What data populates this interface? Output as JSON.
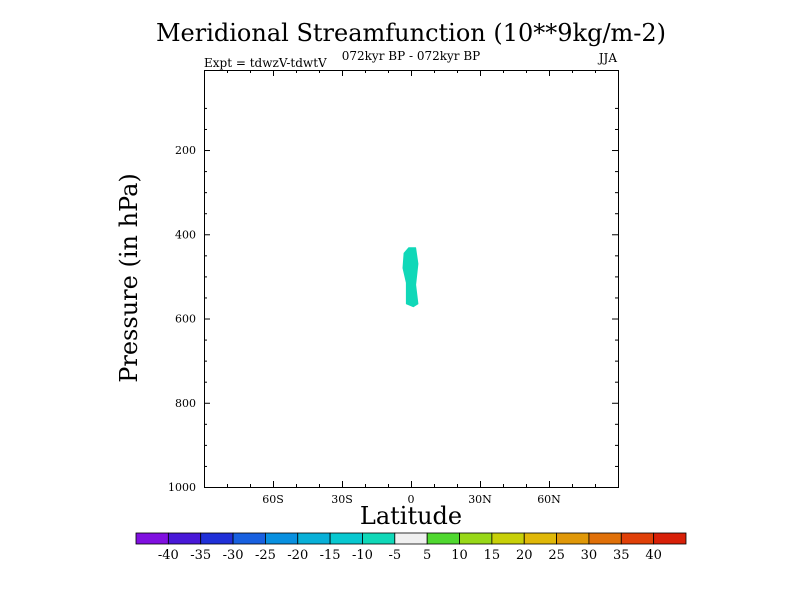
{
  "chart_data": {
    "type": "contour",
    "title": "Meridional Streamfunction (10**9kg/m-2)",
    "subtitle": "072kyr BP - 072kyr BP",
    "left_label": "Expt = tdwzV-tdwtV",
    "right_label": "JJA",
    "xlabel": "Latitude",
    "ylabel": "Pressure (in hPa)",
    "xlim": [
      -90,
      90
    ],
    "ylim": [
      1000,
      10
    ],
    "x_ticks": [
      {
        "value": -60,
        "label": "60S"
      },
      {
        "value": -30,
        "label": "30S"
      },
      {
        "value": 0,
        "label": "0"
      },
      {
        "value": 30,
        "label": "30N"
      },
      {
        "value": 60,
        "label": "60N"
      }
    ],
    "y_ticks": [
      {
        "value": 200,
        "label": "200"
      },
      {
        "value": 400,
        "label": "400"
      },
      {
        "value": 600,
        "label": "600"
      },
      {
        "value": 800,
        "label": "800"
      },
      {
        "value": 1000,
        "label": "1000"
      }
    ],
    "filled_regions": [
      {
        "level_range": [
          -10,
          -5
        ],
        "color": "#10d8b8",
        "outline": [
          {
            "lat": -3,
            "p": 445
          },
          {
            "lat": -1,
            "p": 432
          },
          {
            "lat": 2,
            "p": 432
          },
          {
            "lat": 3,
            "p": 470
          },
          {
            "lat": 2,
            "p": 520
          },
          {
            "lat": 3,
            "p": 565
          },
          {
            "lat": 1,
            "p": 572
          },
          {
            "lat": -2,
            "p": 565
          },
          {
            "lat": -2,
            "p": 515
          },
          {
            "lat": -3.5,
            "p": 480
          }
        ]
      }
    ],
    "colorbar": {
      "labels": [
        "-40",
        "-35",
        "-30",
        "-25",
        "-20",
        "-15",
        "-10",
        "-5",
        "5",
        "10",
        "15",
        "20",
        "25",
        "30",
        "35",
        "40"
      ],
      "colors": [
        "#8010e0",
        "#4818d8",
        "#2030d8",
        "#1860e0",
        "#0890e0",
        "#08b0d8",
        "#08c8d0",
        "#10d8b8",
        "#f0f0f0",
        "#50d830",
        "#98d818",
        "#c8d008",
        "#e0b808",
        "#e09808",
        "#e07008",
        "#e04008",
        "#d82008"
      ]
    }
  }
}
